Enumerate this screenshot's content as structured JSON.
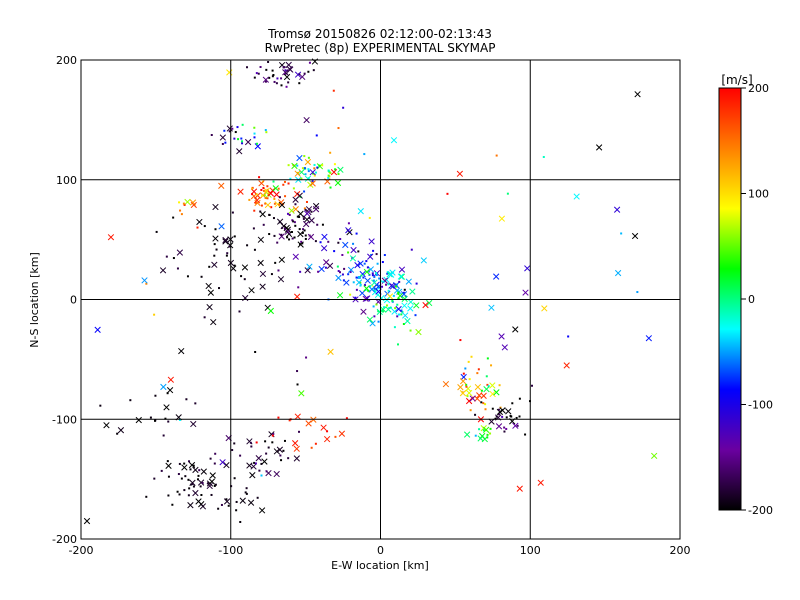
{
  "chart_data": [
    {
      "type": "scatter",
      "title": "Tromsø 20150826 02:12:00-02:13:43",
      "subtitle": "RwPretec (8p) EXPERIMENTAL SKYMAP",
      "xlabel": "E-W location [km]",
      "ylabel": "N-S location [km]",
      "xlim": [
        -200,
        200
      ],
      "ylim": [
        -200,
        200
      ],
      "xticks": [
        "-200",
        "-100",
        "0",
        "100",
        "200"
      ],
      "yticks": [
        "-200",
        "-100",
        "0",
        "100",
        "200"
      ],
      "grid": true,
      "color_by": "velocity (m/s)",
      "marker_legend": "x = high power, dot = low power",
      "clusters": [
        {
          "x": -62,
          "y": 190,
          "sx": 12,
          "sy": 6,
          "n": 40,
          "v": -180,
          "vs": 30
        },
        {
          "x": -100,
          "y": 135,
          "sx": 6,
          "sy": 6,
          "n": 15,
          "v": -150,
          "vs": 60
        },
        {
          "x": -85,
          "y": 135,
          "sx": 6,
          "sy": 5,
          "n": 10,
          "v": -10,
          "vs": 40
        },
        {
          "x": -75,
          "y": 88,
          "sx": 9,
          "sy": 6,
          "n": 55,
          "v": 150,
          "vs": 50
        },
        {
          "x": -45,
          "y": 105,
          "sx": 12,
          "sy": 8,
          "n": 55,
          "v": 30,
          "vs": 60
        },
        {
          "x": -60,
          "y": 60,
          "sx": 12,
          "sy": 10,
          "n": 70,
          "v": -190,
          "vs": 20
        },
        {
          "x": -30,
          "y": 35,
          "sx": 15,
          "sy": 12,
          "n": 40,
          "v": -120,
          "vs": 50
        },
        {
          "x": -5,
          "y": 15,
          "sx": 14,
          "sy": 12,
          "n": 110,
          "v": -60,
          "vs": 50
        },
        {
          "x": 12,
          "y": -5,
          "sx": 10,
          "sy": 8,
          "n": 40,
          "v": 10,
          "vs": 40
        },
        {
          "x": -105,
          "y": 30,
          "sx": 20,
          "sy": 20,
          "n": 50,
          "v": -195,
          "vs": 10
        },
        {
          "x": -130,
          "y": 77,
          "sx": 5,
          "sy": 4,
          "n": 8,
          "v": 140,
          "vs": 40
        },
        {
          "x": 65,
          "y": -75,
          "sx": 9,
          "sy": 12,
          "n": 40,
          "v": 100,
          "vs": 80
        },
        {
          "x": 80,
          "y": -100,
          "sx": 8,
          "sy": 8,
          "n": 30,
          "v": -180,
          "vs": 40
        },
        {
          "x": 70,
          "y": -112,
          "sx": 6,
          "sy": 4,
          "n": 12,
          "v": 20,
          "vs": 30
        },
        {
          "x": -125,
          "y": -155,
          "sx": 12,
          "sy": 12,
          "n": 50,
          "v": -195,
          "vs": 10
        },
        {
          "x": -80,
          "y": -130,
          "sx": 14,
          "sy": 12,
          "n": 40,
          "v": -185,
          "vs": 20
        },
        {
          "x": -95,
          "y": -165,
          "sx": 8,
          "sy": 8,
          "n": 15,
          "v": -195,
          "vs": 5
        },
        {
          "x": -45,
          "y": -110,
          "sx": 15,
          "sy": 10,
          "n": 15,
          "v": 180,
          "vs": 20
        },
        {
          "x": -150,
          "y": -90,
          "sx": 15,
          "sy": 20,
          "n": 20,
          "v": -195,
          "vs": 10
        },
        {
          "x": 0,
          "y": 0,
          "sx": 110,
          "sy": 110,
          "n": 70,
          "v": 0,
          "vs": 150
        }
      ],
      "points": [
        {
          "x": 146,
          "y": 127,
          "v": -200,
          "m": "x"
        },
        {
          "x": 158,
          "y": 75,
          "v": -110,
          "m": "x"
        },
        {
          "x": 170,
          "y": 53,
          "v": -200,
          "m": "x"
        },
        {
          "x": 131,
          "y": 86,
          "v": -30,
          "m": "x"
        },
        {
          "x": 53,
          "y": 105,
          "v": 190,
          "m": "x"
        },
        {
          "x": 9,
          "y": 133,
          "v": -30,
          "m": "x"
        },
        {
          "x": -180,
          "y": 52,
          "v": 190,
          "m": "x"
        },
        {
          "x": -196,
          "y": -185,
          "v": -200,
          "m": "x"
        },
        {
          "x": -183,
          "y": -105,
          "v": -200,
          "m": "x"
        },
        {
          "x": 98,
          "y": 26,
          "v": -110,
          "m": "x"
        },
        {
          "x": 107,
          "y": -153,
          "v": 190,
          "m": "x"
        },
        {
          "x": 93,
          "y": -158,
          "v": 190,
          "m": "x"
        },
        {
          "x": 90,
          "y": -25,
          "v": -200,
          "m": "x"
        },
        {
          "x": 83,
          "y": -40,
          "v": -130,
          "m": "x"
        },
        {
          "x": -140,
          "y": -67,
          "v": 190,
          "m": "x"
        },
        {
          "x": -145,
          "y": -73,
          "v": -50,
          "m": "x"
        },
        {
          "x": -57,
          "y": -120,
          "v": 190,
          "m": "x"
        },
        {
          "x": -38,
          "y": -107,
          "v": 190,
          "m": "x"
        },
        {
          "x": 18,
          "y": -18,
          "v": -10,
          "m": "x"
        }
      ]
    },
    {
      "type": "heatmap",
      "title": "[m/s]",
      "ylim": [
        -200,
        200
      ],
      "ticks": [
        "200",
        "100",
        "0",
        "-100",
        "-200"
      ],
      "colormap": [
        "#000000",
        "#6a00a0",
        "#0000ff",
        "#00ffff",
        "#00ff00",
        "#ffff00",
        "#ff8000",
        "#ff0000"
      ]
    }
  ]
}
